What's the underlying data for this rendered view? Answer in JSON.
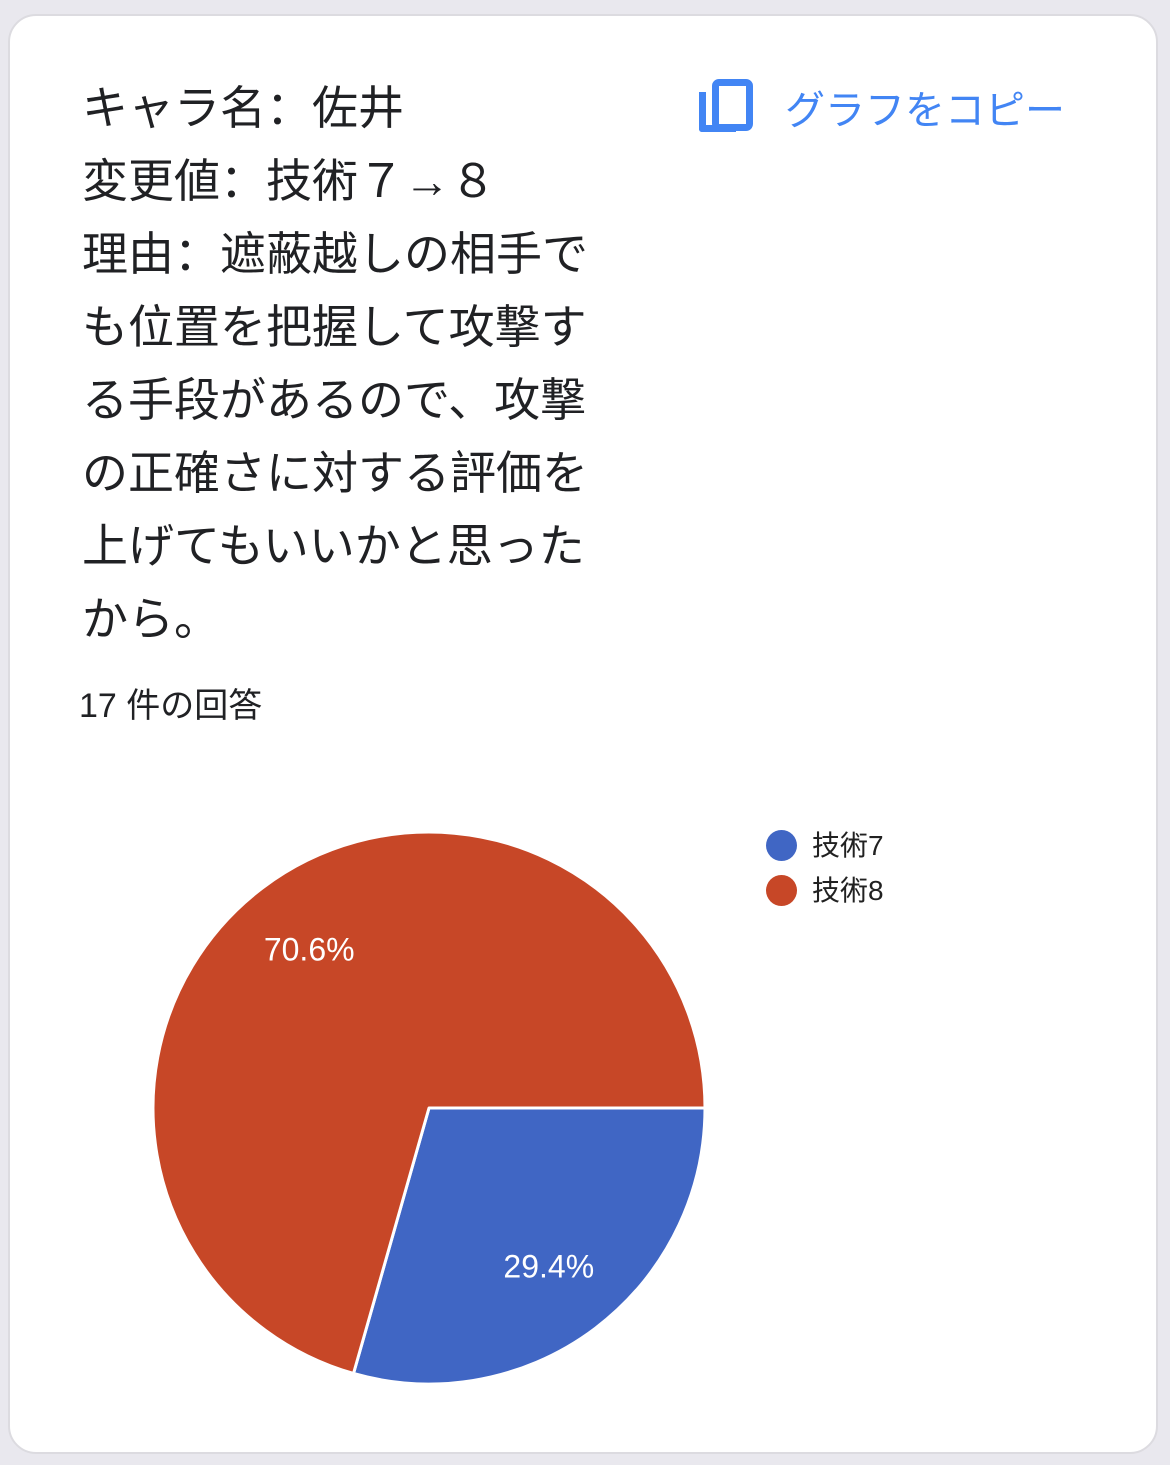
{
  "card": {
    "question_text": "キャラ名：佐井\n変更値：技術７→８\n理由：遮蔽越しの相手で\nも位置を把握して攻撃す\nる手段があるので、攻撃\nの正確さに対する評価を\n上げてもいいかと思った\nから。",
    "copy_button": {
      "label": "グラフをコピー",
      "color": "#4285f4"
    },
    "responses_count_label": "17 件の回答"
  },
  "chart_data": {
    "type": "pie",
    "title": "キャラ名：佐井 変更値：技術７→８ 理由：遮蔽越しの相手でも位置を把握して攻撃する手段があるので、攻撃の正確さに対する評価を上げてもいいかと思ったから。",
    "labels": [
      "技術7",
      "技術8"
    ],
    "values": [
      5,
      12
    ],
    "percentages": [
      29.4,
      70.6
    ],
    "percent_labels": [
      "29.4%",
      "70.6%"
    ],
    "colors": [
      "#4066c4",
      "#c74727"
    ],
    "total_responses": 17,
    "legend_position": "right",
    "start_angle_deg": 0,
    "direction": "clockwise",
    "slice_border_color": "#ffffff"
  }
}
